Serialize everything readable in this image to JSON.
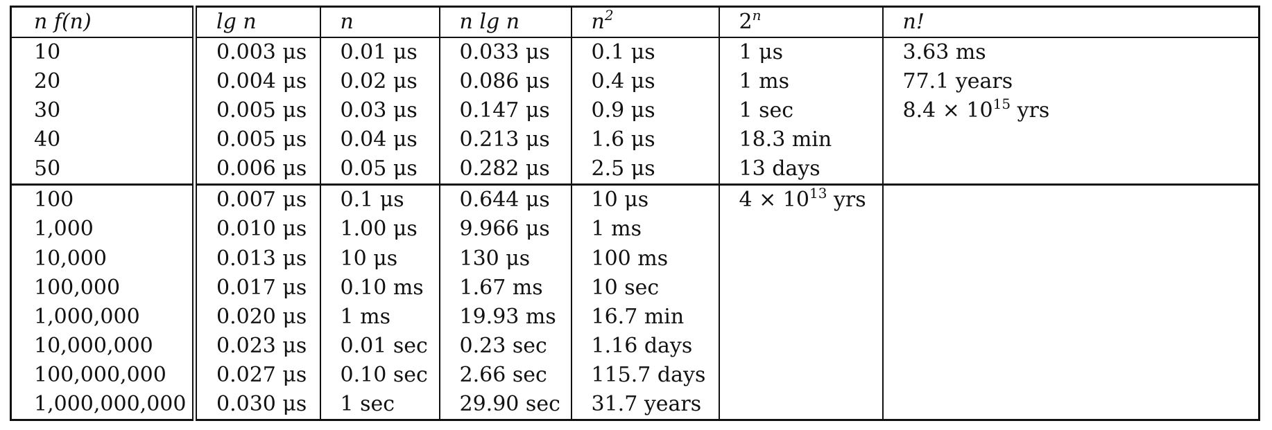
{
  "table": {
    "headers": [
      {
        "main": "n   f(n)"
      },
      {
        "main": "lg n"
      },
      {
        "main": "n"
      },
      {
        "main": "n lg n"
      },
      {
        "main": "n",
        "sup": "2"
      },
      {
        "main": "2",
        "sup": "n"
      },
      {
        "main": "n!"
      }
    ],
    "rows": [
      [
        "10",
        "0.003 μs",
        "0.01 μs",
        "0.033 μs",
        "0.1 μs",
        "1 μs",
        "3.63 ms"
      ],
      [
        "20",
        "0.004 μs",
        "0.02 μs",
        "0.086 μs",
        "0.4 μs",
        "1 ms",
        "77.1 years"
      ],
      [
        "30",
        "0.005 μs",
        "0.03 μs",
        "0.147 μs",
        "0.9 μs",
        "1 sec",
        "8.4 × 10^15 yrs"
      ],
      [
        "40",
        "0.005 μs",
        "0.04 μs",
        "0.213 μs",
        "1.6 μs",
        "18.3 min",
        ""
      ],
      [
        "50",
        "0.006 μs",
        "0.05 μs",
        "0.282 μs",
        "2.5 μs",
        "13 days",
        ""
      ],
      [
        "100",
        "0.007 μs",
        "0.1 μs",
        "0.644 μs",
        "10 μs",
        "4 × 10^13 yrs",
        ""
      ],
      [
        "1,000",
        "0.010 μs",
        "1.00 μs",
        "9.966 μs",
        "1 ms",
        "",
        ""
      ],
      [
        "10,000",
        "0.013 μs",
        "10 μs",
        "130 μs",
        "100 ms",
        "",
        ""
      ],
      [
        "100,000",
        "0.017 μs",
        "0.10 ms",
        "1.67 ms",
        "10 sec",
        "",
        ""
      ],
      [
        "1,000,000",
        "0.020 μs",
        "1 ms",
        "19.93 ms",
        "16.7 min",
        "",
        ""
      ],
      [
        "10,000,000",
        "0.023 μs",
        "0.01 sec",
        "0.23 sec",
        "1.16 days",
        "",
        ""
      ],
      [
        "100,000,000",
        "0.027 μs",
        "0.10 sec",
        "2.66 sec",
        "115.7 days",
        "",
        ""
      ],
      [
        "1,000,000,000",
        "0.030 μs",
        "1 sec",
        "29.90 sec",
        "31.7 years",
        "",
        ""
      ]
    ]
  }
}
